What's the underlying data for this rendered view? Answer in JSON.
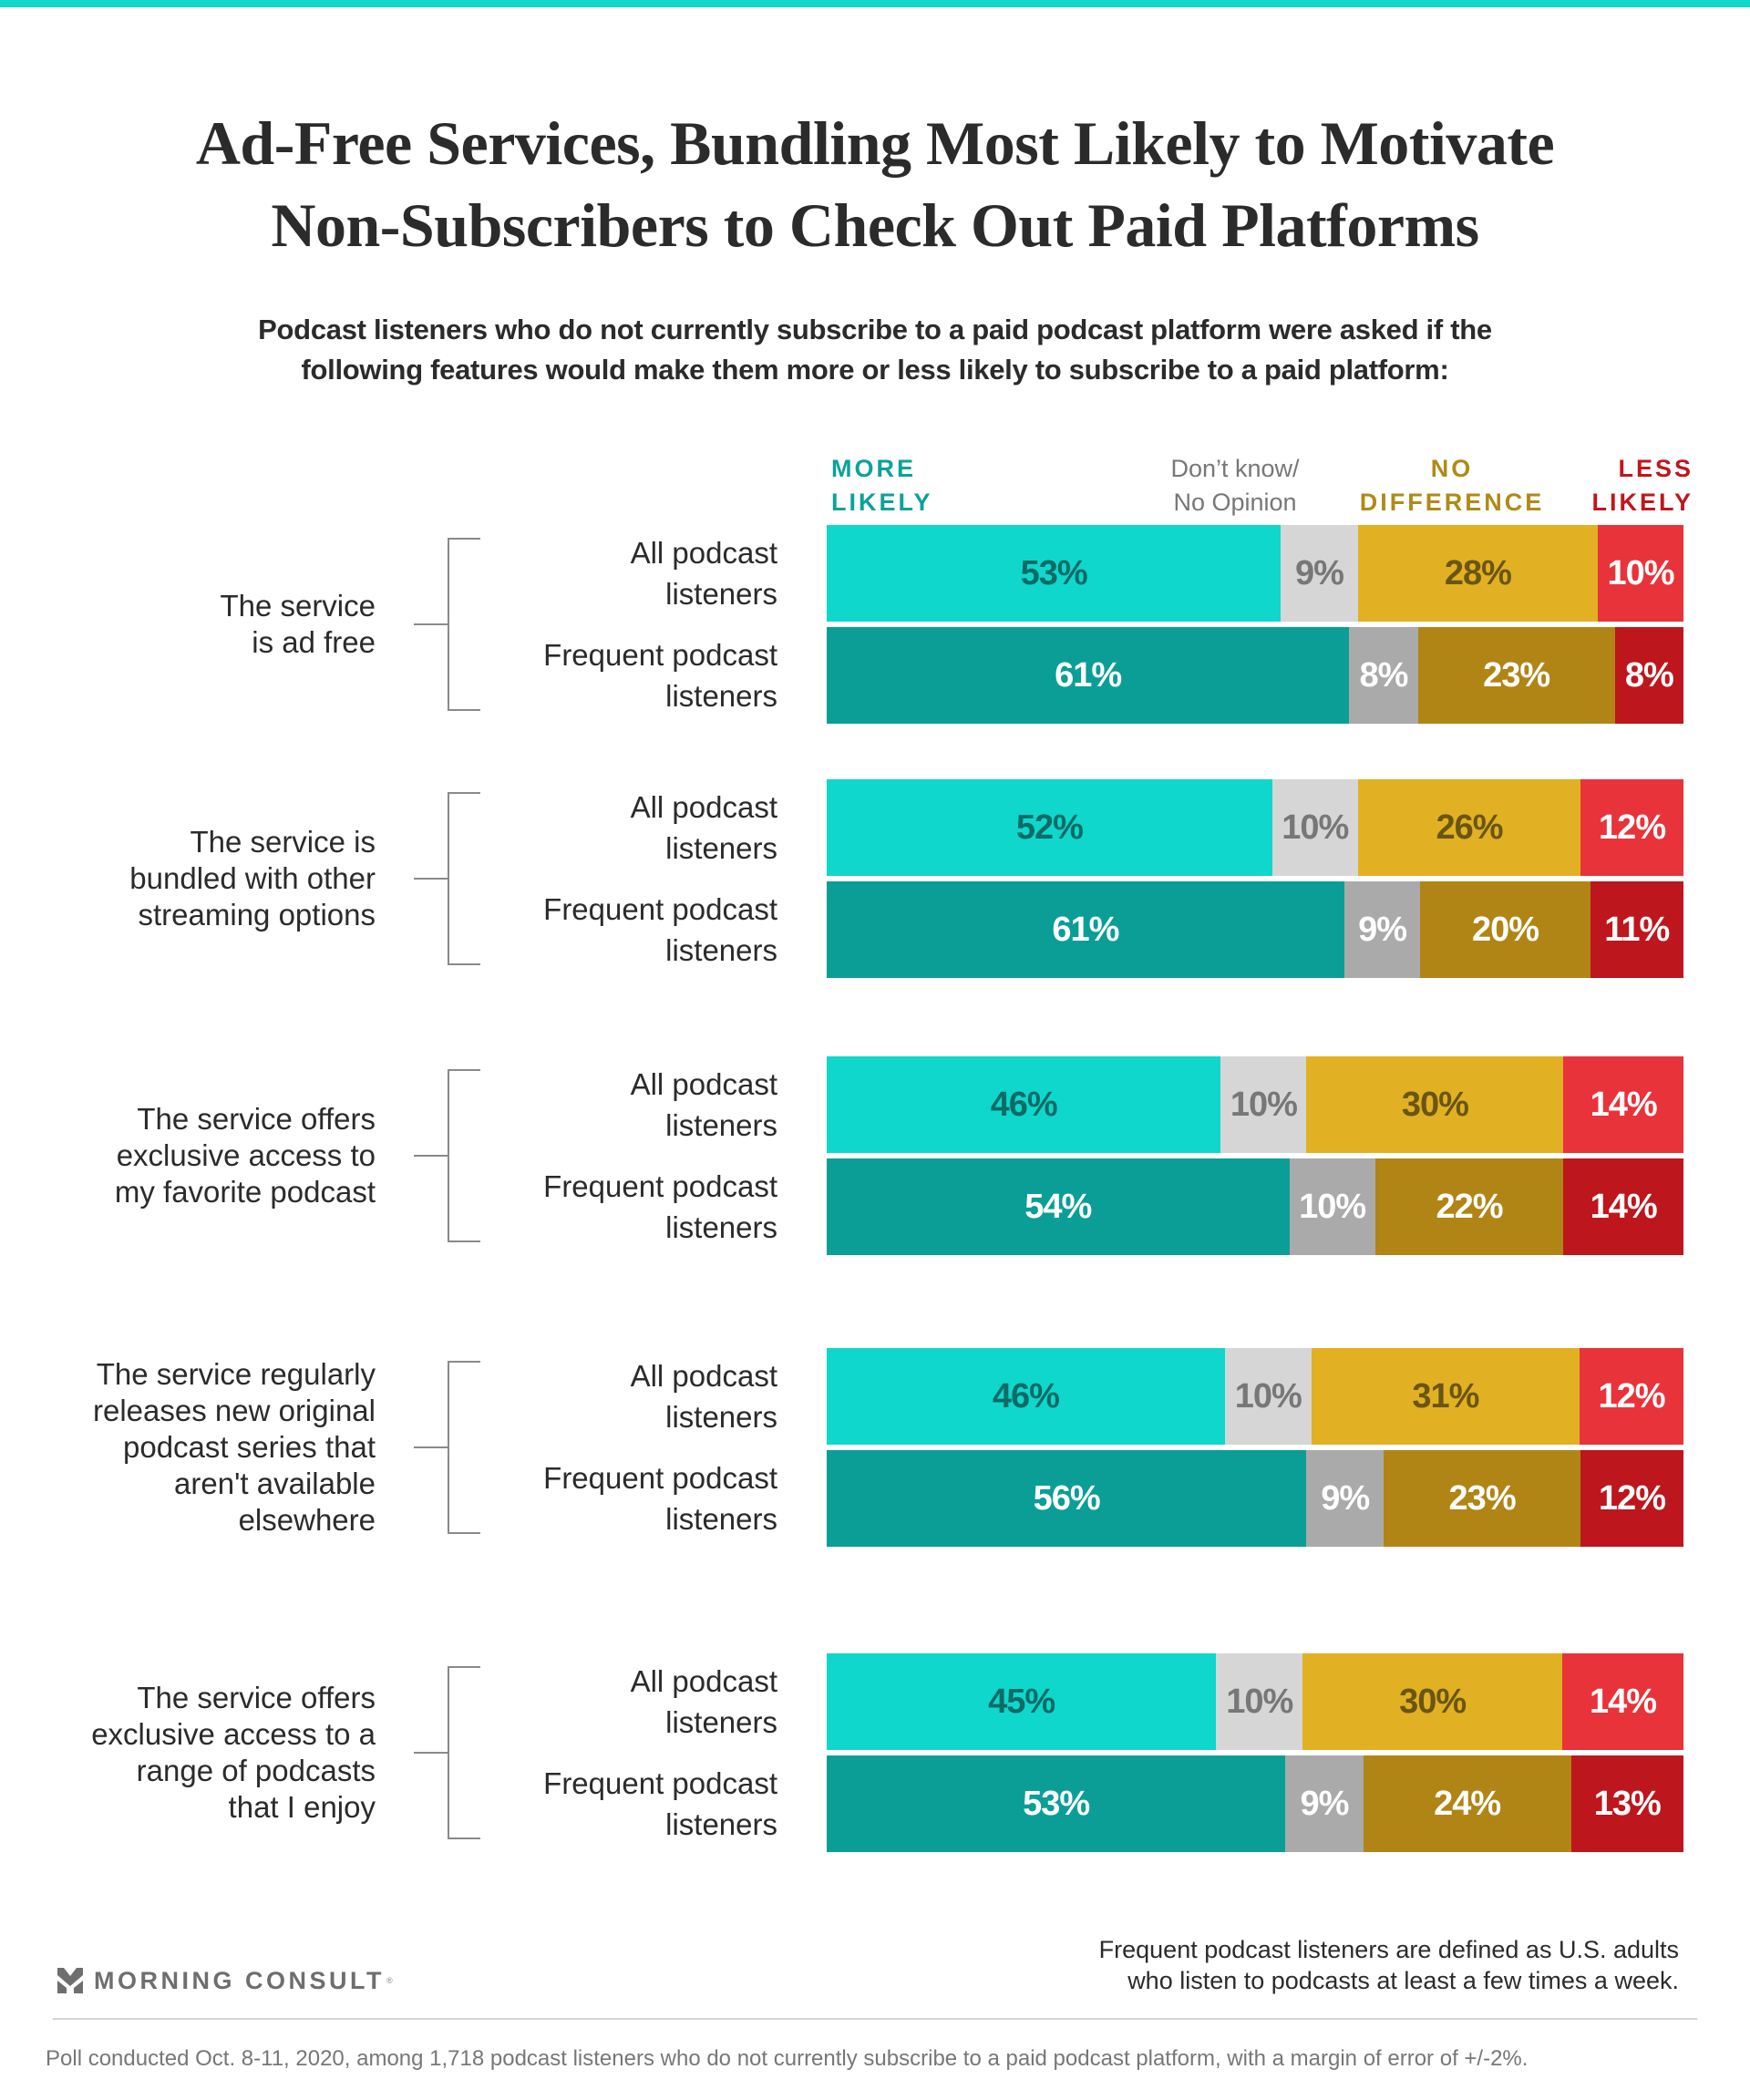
{
  "header": {
    "title_lines": [
      "Ad-Free Services, Bundling Most Likely to Motivate",
      "Non-Subscribers to Check Out Paid Platforms"
    ],
    "subtitle_lines": [
      "Podcast listeners who do not currently subscribe to a paid podcast platform were asked if the",
      "following features would make them more or less likely to subscribe to a paid platform:"
    ]
  },
  "legend": {
    "more_likely": [
      "MORE",
      "LIKELY"
    ],
    "dont_know": [
      "Don’t know/",
      "No Opinion"
    ],
    "no_difference": [
      "NO",
      "DIFFERENCE"
    ],
    "less_likely": [
      "LESS",
      "LIKELY"
    ]
  },
  "colors": {
    "top_accent": "#0fd7cc",
    "all": {
      "more": "#0fd7cc",
      "dk": "#d6d6d6",
      "nd": "#e1b123",
      "less": "#e8333b"
    },
    "frequent": {
      "more": "#0b9e97",
      "dk": "#aaaaaa",
      "nd": "#b08515",
      "less": "#be161d"
    },
    "label_all": {
      "more": "#0c6b66",
      "dk": "#777777",
      "nd": "#6b5512",
      "less": "#ffffff"
    },
    "label_frequent": {
      "more": "#ffffff",
      "dk": "#ffffff",
      "nd": "#ffffff",
      "less": "#ffffff"
    },
    "legend": {
      "more": "#0ca299",
      "dk": "#777777",
      "nd": "#b08a18",
      "less": "#c0161d"
    }
  },
  "chart_data": {
    "type": "bar",
    "orientation": "horizontal",
    "stacked": true,
    "normalized": true,
    "title": "Ad-Free Services, Bundling Most Likely to Motivate Non-Subscribers to Check Out Paid Platforms",
    "subtitle": "Podcast listeners who do not currently subscribe to a paid podcast platform were asked if the following features would make them more or less likely to subscribe to a paid platform:",
    "xlabel": "",
    "ylabel": "",
    "series_names": [
      "MORE LIKELY",
      "Don’t know/ No Opinion",
      "NO DIFFERENCE",
      "LESS LIKELY"
    ],
    "legend_position": "top",
    "unit": "%",
    "groups": [
      {
        "label_lines": [
          "The service",
          "is ad free"
        ],
        "rows": [
          {
            "label_lines": [
              "All podcast",
              "listeners"
            ],
            "audience": "all",
            "values": [
              53,
              9,
              28,
              10
            ]
          },
          {
            "label_lines": [
              "Frequent podcast",
              "listeners"
            ],
            "audience": "frequent",
            "values": [
              61,
              8,
              23,
              8
            ]
          }
        ]
      },
      {
        "label_lines": [
          "The service is",
          "bundled with other",
          "streaming options"
        ],
        "rows": [
          {
            "label_lines": [
              "All podcast",
              "listeners"
            ],
            "audience": "all",
            "values": [
              52,
              10,
              26,
              12
            ]
          },
          {
            "label_lines": [
              "Frequent podcast",
              "listeners"
            ],
            "audience": "frequent",
            "values": [
              61,
              9,
              20,
              11
            ]
          }
        ]
      },
      {
        "label_lines": [
          "The service offers",
          "exclusive access to",
          "my favorite podcast"
        ],
        "rows": [
          {
            "label_lines": [
              "All podcast",
              "listeners"
            ],
            "audience": "all",
            "values": [
              46,
              10,
              30,
              14
            ]
          },
          {
            "label_lines": [
              "Frequent podcast",
              "listeners"
            ],
            "audience": "frequent",
            "values": [
              54,
              10,
              22,
              14
            ]
          }
        ]
      },
      {
        "label_lines": [
          "The service regularly",
          "releases new original",
          "podcast series that",
          "aren't available",
          "elsewhere"
        ],
        "rows": [
          {
            "label_lines": [
              "All podcast",
              "listeners"
            ],
            "audience": "all",
            "values": [
              46,
              10,
              31,
              12
            ]
          },
          {
            "label_lines": [
              "Frequent podcast",
              "listeners"
            ],
            "audience": "frequent",
            "values": [
              56,
              9,
              23,
              12
            ]
          }
        ]
      },
      {
        "label_lines": [
          "The service offers",
          "exclusive access to a",
          "range of podcasts",
          "that I enjoy"
        ],
        "rows": [
          {
            "label_lines": [
              "All podcast",
              "listeners"
            ],
            "audience": "all",
            "values": [
              45,
              10,
              30,
              14
            ]
          },
          {
            "label_lines": [
              "Frequent podcast",
              "listeners"
            ],
            "audience": "frequent",
            "values": [
              53,
              9,
              24,
              13
            ]
          }
        ]
      }
    ]
  },
  "footer": {
    "logo_text": "MORNING CONSULT",
    "logo_mark": "®",
    "note_lines": [
      "Frequent podcast listeners are defined as U.S. adults",
      "who listen to podcasts at least a few times a week."
    ],
    "poll_note": "Poll conducted Oct. 8-11, 2020, among 1,718 podcast listeners who do not currently subscribe to a paid podcast platform, with a margin of error of +/-2%."
  }
}
